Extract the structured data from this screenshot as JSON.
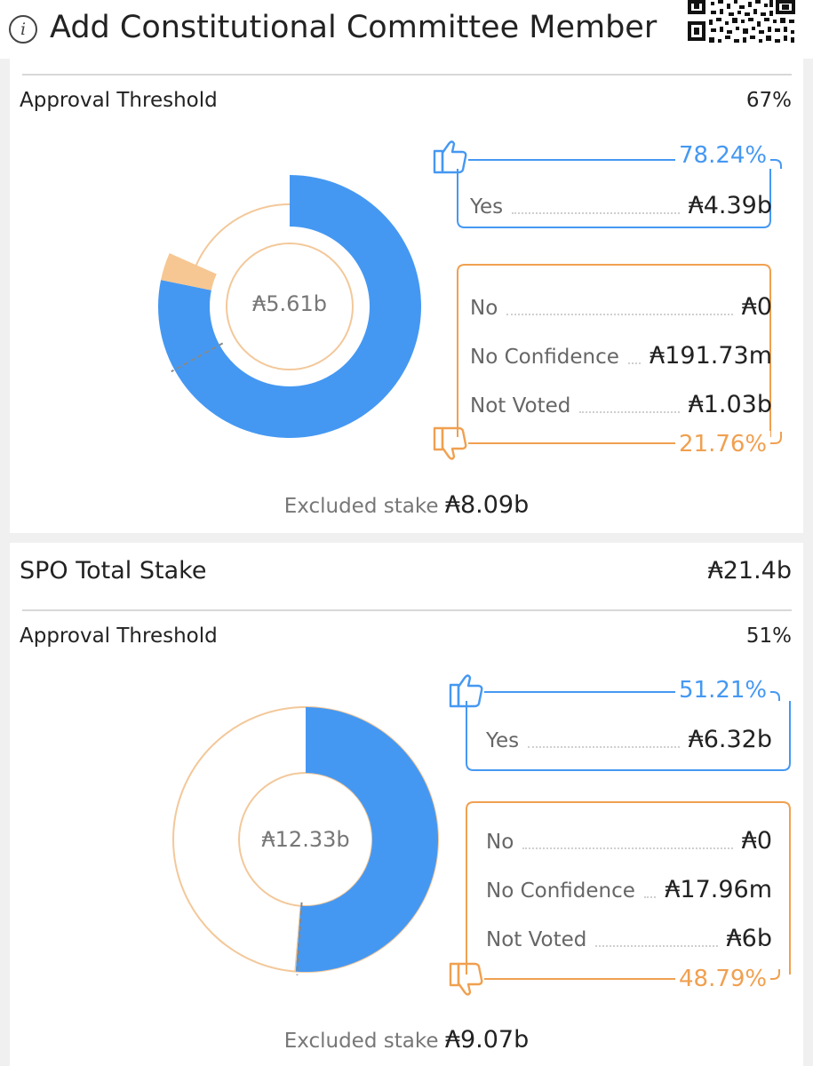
{
  "header": {
    "info_icon": "info-icon",
    "title": "Add Constitutional Committee Member",
    "qr_icon": "qr-code-icon"
  },
  "colors": {
    "yes": "#4598f2",
    "no": "#f0a050",
    "no_confidence_fill": "#f6c792",
    "ring_outline": "#f3c89a"
  },
  "section1": {
    "threshold_label": "Approval Threshold",
    "threshold_value": "67%",
    "donut_center": "₳5.61b",
    "yes_pct": "78.24%",
    "no_pct": "21.76%",
    "yes_rows": [
      {
        "label": "Yes",
        "amount": "₳4.39b"
      }
    ],
    "no_rows": [
      {
        "label": "No",
        "amount": "₳0"
      },
      {
        "label": "No Confidence",
        "amount": "₳191.73m"
      },
      {
        "label": "Not Voted",
        "amount": "₳1.03b"
      }
    ],
    "excluded_label": "Excluded stake",
    "excluded_value": "₳8.09b",
    "threshold_fraction": 0.67,
    "segments": {
      "yes": 0.7824,
      "no_confidence": 0.0341,
      "not_voted": 0.1835
    }
  },
  "section2": {
    "title": "SPO Total Stake",
    "total": "₳21.4b",
    "threshold_label": "Approval Threshold",
    "threshold_value": "51%",
    "donut_center": "₳12.33b",
    "yes_pct": "51.21%",
    "no_pct": "48.79%",
    "yes_rows": [
      {
        "label": "Yes",
        "amount": "₳6.32b"
      }
    ],
    "no_rows": [
      {
        "label": "No",
        "amount": "₳0"
      },
      {
        "label": "No Confidence",
        "amount": "₳17.96m"
      },
      {
        "label": "Not Voted",
        "amount": "₳6b"
      }
    ],
    "excluded_label": "Excluded stake",
    "excluded_value": "₳9.07b",
    "threshold_fraction": 0.51,
    "segments": {
      "yes": 0.5121,
      "no_confidence": 0.0015,
      "not_voted": 0.4864
    }
  }
}
